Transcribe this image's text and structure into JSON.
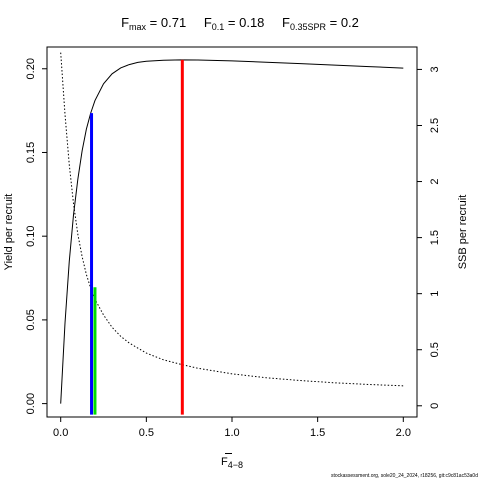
{
  "title": {
    "fmax": {
      "main": "F",
      "sub": "max",
      "rest": " = 0.71"
    },
    "f01": {
      "main": "F",
      "sub": "0.1",
      "rest": " = 0.18"
    },
    "fspr": {
      "main": "F",
      "sub": "0.35SPR",
      "rest": " = 0.2"
    }
  },
  "footer": "stockassessment.org, sole20_24_2024, r18256, git:c9c81ac53a0d",
  "chart_data": {
    "type": "line",
    "xlabel": {
      "main": "F",
      "sub": "4−8",
      "overline": true
    },
    "ylabel_left": "Yield per recruit",
    "ylabel_right": "SSB per recruit",
    "xlim": [
      -0.08,
      2.08
    ],
    "ylim_left": [
      -0.008,
      0.213
    ],
    "ylim_right": [
      -0.1,
      3.2
    ],
    "x_ticks": [
      0.0,
      0.5,
      1.0,
      1.5,
      2.0
    ],
    "x_tick_labels": [
      "0.0",
      "0.5",
      "1.0",
      "1.5",
      "2.0"
    ],
    "y_left_ticks": [
      0.0,
      0.05,
      0.1,
      0.15,
      0.2
    ],
    "y_left_tick_labels": [
      "0.00",
      "0.05",
      "0.10",
      "0.15",
      "0.20"
    ],
    "y_right_ticks": [
      0,
      0.5,
      1,
      1.5,
      2,
      2.5,
      3
    ],
    "y_right_tick_labels": [
      "0",
      "0.5",
      "1",
      "1.5",
      "2",
      "2.5",
      "3"
    ],
    "series": [
      {
        "axis": "left",
        "style": "solid",
        "color": "#000000",
        "x": [
          0.0,
          0.025,
          0.05,
          0.075,
          0.1,
          0.125,
          0.15,
          0.175,
          0.2,
          0.25,
          0.3,
          0.35,
          0.4,
          0.45,
          0.5,
          0.6,
          0.7,
          0.8,
          1.0,
          1.2,
          1.4,
          1.6,
          1.8,
          2.0
        ],
        "y": [
          0.0,
          0.048,
          0.085,
          0.113,
          0.134,
          0.151,
          0.164,
          0.1735,
          0.181,
          0.191,
          0.197,
          0.2005,
          0.2025,
          0.2038,
          0.2045,
          0.2051,
          0.2053,
          0.2052,
          0.2047,
          0.2039,
          0.2031,
          0.2022,
          0.2013,
          0.2004
        ]
      },
      {
        "axis": "right",
        "style": "dotted",
        "color": "#000000",
        "x": [
          0.0,
          0.025,
          0.05,
          0.075,
          0.1,
          0.125,
          0.15,
          0.175,
          0.2,
          0.25,
          0.3,
          0.35,
          0.4,
          0.5,
          0.6,
          0.7,
          0.8,
          1.0,
          1.2,
          1.4,
          1.6,
          1.8,
          2.0
        ],
        "y": [
          3.15,
          2.6,
          2.15,
          1.8,
          1.53,
          1.33,
          1.17,
          1.05,
          0.95,
          0.81,
          0.7,
          0.62,
          0.56,
          0.47,
          0.41,
          0.37,
          0.335,
          0.285,
          0.25,
          0.225,
          0.205,
          0.19,
          0.178
        ]
      }
    ],
    "reference_lines": [
      {
        "name": "Fmax",
        "x": 0.71,
        "y_top": 0.2053,
        "color": "#ff0000"
      },
      {
        "name": "F0.1",
        "x": 0.18,
        "y_top": 0.1735,
        "color": "#0000ff"
      },
      {
        "name": "F0.35SPR",
        "x": 0.2,
        "y_top": 0.0695,
        "color": "#00dd00"
      }
    ]
  }
}
